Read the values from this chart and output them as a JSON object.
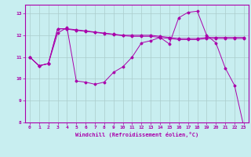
{
  "xlabel": "Windchill (Refroidissement éolien,°C)",
  "background_color": "#c8eef0",
  "grid_color": "#aacccc",
  "line_color": "#aa00aa",
  "x": [
    0,
    1,
    2,
    3,
    4,
    5,
    6,
    7,
    8,
    9,
    10,
    11,
    12,
    13,
    14,
    15,
    16,
    17,
    18,
    19,
    20,
    21,
    22,
    23
  ],
  "line1": [
    11.0,
    10.6,
    10.7,
    12.1,
    12.35,
    9.9,
    9.85,
    9.75,
    9.85,
    10.3,
    10.55,
    11.0,
    11.65,
    11.75,
    11.9,
    11.6,
    12.8,
    13.05,
    13.1,
    12.0,
    11.65,
    10.5,
    9.7,
    7.8
  ],
  "line2": [
    11.0,
    10.6,
    10.7,
    12.3,
    12.3,
    12.25,
    12.2,
    12.15,
    12.1,
    12.05,
    12.0,
    12.0,
    12.0,
    12.0,
    11.95,
    11.9,
    11.85,
    11.85,
    11.85,
    11.9,
    11.9,
    11.9,
    11.9,
    11.9
  ],
  "line3": [
    11.0,
    10.6,
    10.7,
    12.3,
    12.28,
    12.22,
    12.18,
    12.13,
    12.08,
    12.03,
    11.98,
    11.95,
    11.95,
    11.95,
    11.9,
    11.85,
    11.8,
    11.8,
    11.8,
    11.85,
    11.85,
    11.85,
    11.85,
    11.85
  ],
  "ylim": [
    8,
    13.4
  ],
  "xlim": [
    -0.5,
    23.5
  ],
  "yticks": [
    8,
    9,
    10,
    11,
    12,
    13
  ],
  "xticks": [
    0,
    1,
    2,
    3,
    4,
    5,
    6,
    7,
    8,
    9,
    10,
    11,
    12,
    13,
    14,
    15,
    16,
    17,
    18,
    19,
    20,
    21,
    22,
    23
  ]
}
